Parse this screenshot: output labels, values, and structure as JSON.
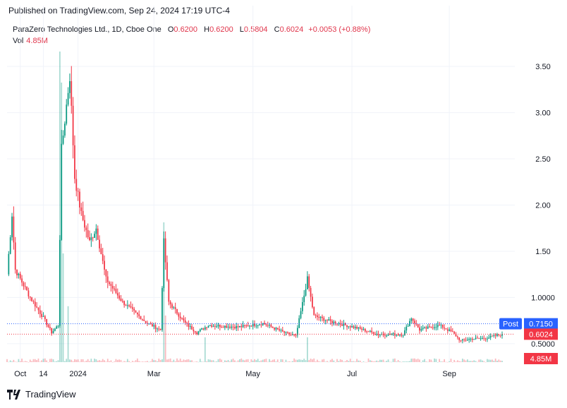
{
  "header": {
    "published": "Published on TradingView.com, Sep 24, 2024 17:19 UTC-4"
  },
  "legend": {
    "symbol": "ParaZero Technologies Ltd., 1D, Cboe One",
    "o_label": "O",
    "o_value": "0.6200",
    "h_label": "H",
    "h_value": "0.6200",
    "l_label": "L",
    "l_value": "0.5804",
    "c_label": "C",
    "c_value": "0.6024",
    "change": "+0.0053 (+0.88%)",
    "vol_label": "Vol",
    "vol_value": "4.85M"
  },
  "price_badges": {
    "post_label": "Post",
    "post_value": "0.7150",
    "last_value": "0.6024",
    "volume_value": "4.85M"
  },
  "footer": {
    "brand": "TradingView"
  },
  "colors": {
    "up": "#089981",
    "down": "#f23645",
    "post_badge": "#2962ff",
    "last_badge": "#f23645",
    "grid": "#f0f3fa"
  },
  "chart_data": {
    "type": "candlestick",
    "y_ticks": [
      "3.50",
      "3.00",
      "2.50",
      "2.00",
      "1.50",
      "1.0000",
      "0.5000"
    ],
    "y_tick_values": [
      3.5,
      3.0,
      2.5,
      2.0,
      1.5,
      1.0,
      0.5
    ],
    "ylim": [
      0.3,
      3.7
    ],
    "x_ticks": [
      "Oct",
      "14",
      "2024",
      "Mar",
      "May",
      "Jul",
      "Sep"
    ],
    "x_tick_days": [
      8,
      22,
      43,
      89,
      149,
      209,
      268
    ],
    "xlim": [
      0,
      300
    ],
    "post_price": 0.715,
    "last_price": 0.6024,
    "key_points": [
      {
        "day": 0,
        "close": 1.25
      },
      {
        "day": 3,
        "close": 1.9
      },
      {
        "day": 5,
        "close": 1.3
      },
      {
        "day": 14,
        "close": 1.0
      },
      {
        "day": 22,
        "close": 0.78
      },
      {
        "day": 27,
        "close": 0.62
      },
      {
        "day": 31,
        "close": 0.7
      },
      {
        "day": 33,
        "close": 2.6
      },
      {
        "day": 38,
        "close": 3.4
      },
      {
        "day": 41,
        "close": 2.3
      },
      {
        "day": 45,
        "close": 1.9
      },
      {
        "day": 50,
        "close": 1.6
      },
      {
        "day": 54,
        "close": 1.75
      },
      {
        "day": 60,
        "close": 1.2
      },
      {
        "day": 70,
        "close": 0.95
      },
      {
        "day": 85,
        "close": 0.72
      },
      {
        "day": 93,
        "close": 0.65
      },
      {
        "day": 95,
        "close": 1.6
      },
      {
        "day": 98,
        "close": 0.95
      },
      {
        "day": 108,
        "close": 0.72
      },
      {
        "day": 115,
        "close": 0.62
      },
      {
        "day": 122,
        "close": 0.7
      },
      {
        "day": 140,
        "close": 0.68
      },
      {
        "day": 155,
        "close": 0.72
      },
      {
        "day": 168,
        "close": 0.62
      },
      {
        "day": 175,
        "close": 0.58
      },
      {
        "day": 182,
        "close": 1.2
      },
      {
        "day": 186,
        "close": 0.8
      },
      {
        "day": 196,
        "close": 0.74
      },
      {
        "day": 212,
        "close": 0.67
      },
      {
        "day": 225,
        "close": 0.6
      },
      {
        "day": 240,
        "close": 0.6
      },
      {
        "day": 245,
        "close": 0.78
      },
      {
        "day": 250,
        "close": 0.65
      },
      {
        "day": 262,
        "close": 0.7
      },
      {
        "day": 270,
        "close": 0.62
      },
      {
        "day": 275,
        "close": 0.53
      },
      {
        "day": 280,
        "close": 0.55
      },
      {
        "day": 290,
        "close": 0.56
      },
      {
        "day": 300,
        "close": 0.6024
      }
    ],
    "volume_spikes": [
      {
        "day": 32,
        "rel": 1.0
      },
      {
        "day": 33,
        "rel": 0.9
      },
      {
        "day": 34,
        "rel": 0.35
      },
      {
        "day": 37,
        "rel": 0.18
      },
      {
        "day": 95,
        "rel": 0.45
      },
      {
        "day": 96,
        "rel": 0.15
      },
      {
        "day": 120,
        "rel": 0.08
      },
      {
        "day": 182,
        "rel": 0.08
      }
    ]
  }
}
